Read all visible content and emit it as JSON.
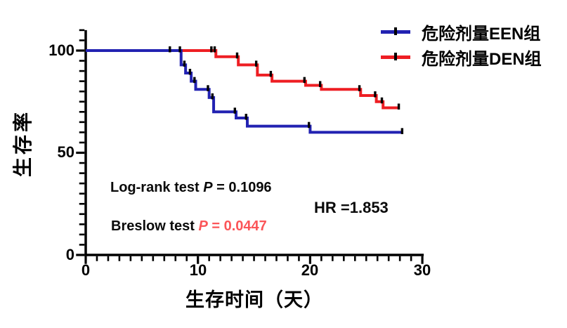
{
  "axes": {
    "y_title": "生存率",
    "x_title": "生存时间（天）",
    "y_tick_labels": [
      "100",
      "50",
      "0"
    ],
    "x_tick_labels": [
      "0",
      "10",
      "20",
      "30"
    ]
  },
  "legend": {
    "items": [
      {
        "label": "危险剂量EEN组",
        "color": "#2222b2"
      },
      {
        "label": "危险剂量DEN组",
        "color": "#ee1e23"
      }
    ]
  },
  "stats": {
    "logrank_prefix": "Log-rank  test ",
    "logrank_p": "P",
    "logrank_rest": " = 0.1096",
    "breslow_prefix": "Breslow test ",
    "breslow_p": "P",
    "breslow_rest": " = 0.0447",
    "breslow_value_color": "#fb5558",
    "hr": "HR =1.853"
  },
  "chart_data": {
    "type": "line",
    "variant": "kaplan-meier-step",
    "title": "",
    "xlabel": "生存时间（天）",
    "ylabel": "生存率",
    "xlim": [
      0,
      30
    ],
    "ylim": [
      0,
      110
    ],
    "x_ticks": [
      0,
      10,
      20,
      30
    ],
    "y_ticks": [
      0,
      50,
      100
    ],
    "x_minor_step": 1,
    "y_minor_step": 5,
    "grid": false,
    "legend_position": "top-right",
    "series": [
      {
        "name": "危险剂量EEN组",
        "color": "#2222b2",
        "steps": [
          [
            0,
            100
          ],
          [
            8.5,
            93
          ],
          [
            8.9,
            89
          ],
          [
            9.4,
            85
          ],
          [
            9.8,
            81
          ],
          [
            11.0,
            77
          ],
          [
            11.4,
            70
          ],
          [
            13.4,
            67
          ],
          [
            14.4,
            63
          ],
          [
            20.0,
            60
          ],
          [
            28.2,
            60
          ]
        ],
        "censor_marks": [
          [
            7.5,
            100
          ],
          [
            28.2,
            60
          ]
        ]
      },
      {
        "name": "危险剂量DEN组",
        "color": "#ee1e23",
        "steps": [
          [
            0,
            100
          ],
          [
            11.6,
            97
          ],
          [
            13.6,
            93
          ],
          [
            15.3,
            88
          ],
          [
            16.6,
            85
          ],
          [
            19.6,
            83
          ],
          [
            21.0,
            81
          ],
          [
            24.5,
            78
          ],
          [
            25.9,
            75
          ],
          [
            26.5,
            72
          ],
          [
            27.9,
            72
          ]
        ],
        "censor_marks": [
          [
            11.2,
            100
          ],
          [
            27.9,
            72
          ]
        ]
      }
    ],
    "annotations": [
      "Log-rank  test P = 0.1096",
      "Breslow test P = 0.0447",
      "HR =1.853"
    ]
  }
}
